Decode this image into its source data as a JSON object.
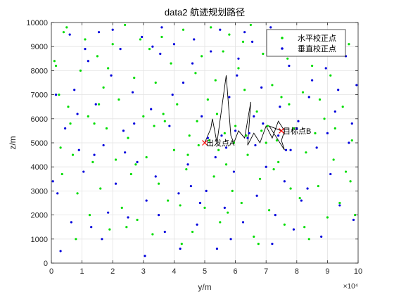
{
  "chart_data": {
    "type": "scatter",
    "title": "data2 航迹规划路径",
    "xlabel": "y/m",
    "ylabel": "z/m",
    "x_exponent_label": "×10⁴",
    "xlim": [
      0,
      100000
    ],
    "ylim": [
      0,
      10000
    ],
    "grid": true,
    "legend_position": "top-right",
    "x_ticks": [
      0,
      10000,
      20000,
      30000,
      40000,
      50000,
      60000,
      70000,
      80000,
      90000,
      100000
    ],
    "x_tick_labels": [
      "0",
      "1",
      "2",
      "3",
      "4",
      "5",
      "6",
      "7",
      "8",
      "9",
      "10"
    ],
    "y_ticks": [
      0,
      1000,
      2000,
      3000,
      4000,
      5000,
      6000,
      7000,
      8000,
      9000,
      10000
    ],
    "y_tick_labels": [
      "0",
      "1000",
      "2000",
      "3000",
      "4000",
      "5000",
      "6000",
      "7000",
      "8000",
      "9000",
      "10000"
    ],
    "colors": {
      "horizontal": "#00dd00",
      "vertical": "#0000dd",
      "path": "#000000",
      "endpoints": "#ff0000"
    },
    "series": [
      {
        "name": "水平校正点",
        "color": "#00dd00",
        "points": [
          [
            1000,
            8400
          ],
          [
            1500,
            8200
          ],
          [
            2500,
            7000
          ],
          [
            3000,
            4800
          ],
          [
            4000,
            9600
          ],
          [
            5000,
            9800
          ],
          [
            5500,
            6500
          ],
          [
            6200,
            5800
          ],
          [
            7000,
            4500
          ],
          [
            8500,
            2900
          ],
          [
            9500,
            8000
          ],
          [
            11000,
            9300
          ],
          [
            12000,
            6100
          ],
          [
            13500,
            4200
          ],
          [
            14000,
            5800
          ],
          [
            15000,
            8600
          ],
          [
            16000,
            3100
          ],
          [
            17000,
            7300
          ],
          [
            18000,
            5600
          ],
          [
            19000,
            1400
          ],
          [
            20000,
            9100
          ],
          [
            21000,
            4300
          ],
          [
            22000,
            6800
          ],
          [
            23000,
            2300
          ],
          [
            24000,
            9900
          ],
          [
            25000,
            5200
          ],
          [
            26000,
            3700
          ],
          [
            27000,
            7700
          ],
          [
            28000,
            1800
          ],
          [
            29000,
            9300
          ],
          [
            30000,
            6100
          ],
          [
            31000,
            4400
          ],
          [
            32000,
            8900
          ],
          [
            33000,
            1200
          ],
          [
            34000,
            7500
          ],
          [
            35000,
            3300
          ],
          [
            36000,
            9400
          ],
          [
            37000,
            5900
          ],
          [
            38000,
            2600
          ],
          [
            39000,
            8300
          ],
          [
            40000,
            4700
          ],
          [
            41000,
            6600
          ],
          [
            42000,
            2400
          ],
          [
            43000,
            9700
          ],
          [
            44000,
            3900
          ],
          [
            45000,
            5300
          ],
          [
            46000,
            1300
          ],
          [
            47000,
            7900
          ],
          [
            48000,
            4900
          ],
          [
            49000,
            8600
          ],
          [
            50000,
            2300
          ],
          [
            51000,
            6800
          ],
          [
            52000,
            9800
          ],
          [
            53000,
            3600
          ],
          [
            54000,
            6200
          ],
          [
            55000,
            1700
          ],
          [
            56000,
            8800
          ],
          [
            57000,
            4100
          ],
          [
            58000,
            9500
          ],
          [
            59000,
            3000
          ],
          [
            60000,
            5700
          ],
          [
            61000,
            8100
          ],
          [
            62000,
            2500
          ],
          [
            63000,
            7200
          ],
          [
            64000,
            4500
          ],
          [
            65000,
            9900
          ],
          [
            66000,
            1100
          ],
          [
            67000,
            6300
          ],
          [
            68000,
            3500
          ],
          [
            69000,
            8700
          ],
          [
            70000,
            5000
          ],
          [
            71000,
            2200
          ],
          [
            72000,
            7400
          ],
          [
            73000,
            9300
          ],
          [
            74000,
            4200
          ],
          [
            75000,
            6900
          ],
          [
            76000,
            1600
          ],
          [
            77000,
            8500
          ],
          [
            78000,
            3100
          ],
          [
            79000,
            5600
          ],
          [
            80000,
            9000
          ],
          [
            81000,
            2700
          ],
          [
            82000,
            7100
          ],
          [
            83000,
            4600
          ],
          [
            84000,
            1000
          ],
          [
            85000,
            8200
          ],
          [
            86000,
            5400
          ],
          [
            87000,
            3200
          ],
          [
            88000,
            9600
          ],
          [
            89000,
            6000
          ],
          [
            90000,
            1900
          ],
          [
            91000,
            7800
          ],
          [
            92000,
            4300
          ],
          [
            93000,
            8800
          ],
          [
            94000,
            2500
          ],
          [
            95000,
            6500
          ],
          [
            96000,
            3800
          ],
          [
            97000,
            9100
          ],
          [
            98000,
            5100
          ],
          [
            99000,
            2000
          ],
          [
            3500,
            3700
          ],
          [
            8000,
            1000
          ],
          [
            12500,
            2000
          ],
          [
            18500,
            8100
          ],
          [
            27500,
            4100
          ],
          [
            33500,
            5700
          ],
          [
            42500,
            800
          ],
          [
            47500,
            5900
          ],
          [
            53500,
            7600
          ],
          [
            57500,
            2100
          ],
          [
            62500,
            9200
          ],
          [
            67500,
            800
          ],
          [
            72500,
            3900
          ],
          [
            77500,
            6600
          ],
          [
            82500,
            1500
          ],
          [
            87500,
            6800
          ],
          [
            92500,
            5600
          ],
          [
            97500,
            3400
          ],
          [
            36500,
            6200
          ],
          [
            44500,
            4500
          ],
          [
            51500,
            5100
          ],
          [
            54500,
            4700
          ],
          [
            56500,
            5400
          ],
          [
            59500,
            5000
          ],
          [
            63500,
            5300
          ],
          [
            68500,
            5500
          ],
          [
            70500,
            5700
          ],
          [
            73500,
            5100
          ],
          [
            24500,
            1500
          ],
          [
            15500,
            6600
          ]
        ]
      },
      {
        "name": "垂直校正点",
        "color": "#0000dd",
        "points": [
          [
            500,
            3400
          ],
          [
            2000,
            2900
          ],
          [
            4500,
            5600
          ],
          [
            6000,
            9500
          ],
          [
            7500,
            7200
          ],
          [
            9000,
            4700
          ],
          [
            10500,
            3800
          ],
          [
            12000,
            8400
          ],
          [
            13000,
            1500
          ],
          [
            14500,
            6600
          ],
          [
            15500,
            9600
          ],
          [
            17000,
            4900
          ],
          [
            18500,
            2100
          ],
          [
            19500,
            7800
          ],
          [
            21000,
            3300
          ],
          [
            22500,
            8900
          ],
          [
            23500,
            5500
          ],
          [
            25000,
            1900
          ],
          [
            26500,
            7100
          ],
          [
            28000,
            4200
          ],
          [
            29500,
            9400
          ],
          [
            31000,
            2600
          ],
          [
            32500,
            6400
          ],
          [
            34000,
            3600
          ],
          [
            35500,
            8700
          ],
          [
            37000,
            1300
          ],
          [
            38500,
            5700
          ],
          [
            40000,
            9100
          ],
          [
            41500,
            2900
          ],
          [
            43000,
            7500
          ],
          [
            44500,
            4100
          ],
          [
            46000,
            8300
          ],
          [
            47500,
            1600
          ],
          [
            49000,
            6100
          ],
          [
            50500,
            3000
          ],
          [
            52000,
            8800
          ],
          [
            53500,
            4400
          ],
          [
            55000,
            9700
          ],
          [
            56500,
            2300
          ],
          [
            58000,
            6900
          ],
          [
            59500,
            3800
          ],
          [
            61000,
            8500
          ],
          [
            62500,
            1700
          ],
          [
            64000,
            5200
          ],
          [
            65500,
            9200
          ],
          [
            67000,
            2800
          ],
          [
            68500,
            7300
          ],
          [
            70000,
            4000
          ],
          [
            71500,
            9800
          ],
          [
            73000,
            2000
          ],
          [
            74500,
            6500
          ],
          [
            76000,
            3400
          ],
          [
            77500,
            8200
          ],
          [
            79000,
            1400
          ],
          [
            80500,
            5900
          ],
          [
            82000,
            9500
          ],
          [
            83500,
            3100
          ],
          [
            85000,
            7600
          ],
          [
            86500,
            4800
          ],
          [
            88000,
            1100
          ],
          [
            89500,
            8100
          ],
          [
            91000,
            3700
          ],
          [
            92500,
            6300
          ],
          [
            94000,
            2400
          ],
          [
            95500,
            9000
          ],
          [
            97000,
            5000
          ],
          [
            98500,
            1800
          ],
          [
            99500,
            7400
          ],
          [
            3000,
            500
          ],
          [
            11000,
            8900
          ],
          [
            16500,
            1000
          ],
          [
            24000,
            4600
          ],
          [
            30500,
            300
          ],
          [
            36000,
            9800
          ],
          [
            42000,
            600
          ],
          [
            48500,
            2500
          ],
          [
            54000,
            600
          ],
          [
            60500,
            7800
          ],
          [
            66000,
            6100
          ],
          [
            72000,
            800
          ],
          [
            78000,
            4700
          ],
          [
            84000,
            6900
          ],
          [
            90000,
            5400
          ],
          [
            96000,
            8600
          ],
          [
            1500,
            7000
          ],
          [
            6500,
            1700
          ],
          [
            20000,
            9700
          ],
          [
            27000,
            5800
          ],
          [
            39500,
            7000
          ],
          [
            45500,
            3200
          ],
          [
            51000,
            5200
          ],
          [
            55500,
            5300
          ],
          [
            57000,
            4800
          ],
          [
            60000,
            5500
          ],
          [
            64500,
            5400
          ],
          [
            66500,
            4900
          ],
          [
            69000,
            5800
          ],
          [
            74000,
            5300
          ],
          [
            76500,
            4700
          ],
          [
            80000,
            5600
          ],
          [
            33000,
            9000
          ],
          [
            46500,
            9300
          ],
          [
            58500,
            1000
          ],
          [
            63000,
            9600
          ],
          [
            81500,
            2600
          ],
          [
            93500,
            7200
          ],
          [
            98000,
            5800
          ],
          [
            8500,
            6200
          ],
          [
            14000,
            4500
          ],
          [
            35000,
            2000
          ]
        ]
      }
    ],
    "path": [
      [
        50000,
        5000
      ],
      [
        52000,
        5600
      ],
      [
        52500,
        6000
      ],
      [
        54000,
        5000
      ],
      [
        57000,
        7800
      ],
      [
        58500,
        5300
      ],
      [
        59500,
        5000
      ],
      [
        61000,
        5500
      ],
      [
        63000,
        5200
      ],
      [
        65000,
        6700
      ],
      [
        64000,
        4900
      ],
      [
        66000,
        5400
      ],
      [
        68000,
        5000
      ],
      [
        70000,
        5700
      ],
      [
        72000,
        5200
      ],
      [
        74000,
        5900
      ],
      [
        76000,
        5500
      ],
      [
        75000,
        5100
      ],
      [
        76000,
        4700
      ],
      [
        71000,
        5700
      ],
      [
        75000,
        5500
      ]
    ],
    "start_point": {
      "x": 50000,
      "y": 5000,
      "label": "出发点A"
    },
    "end_point": {
      "x": 75000,
      "y": 5500,
      "label": "目标点B"
    }
  }
}
